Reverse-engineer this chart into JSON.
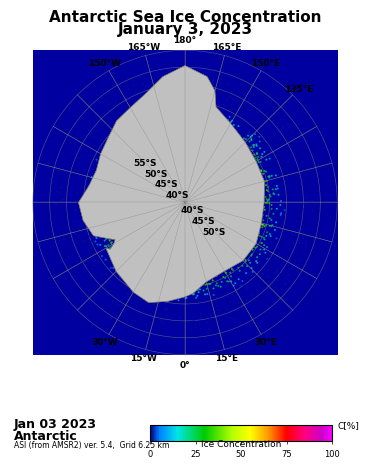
{
  "title_line1": "Antarctic Sea Ice Concentration",
  "title_line2": "January 3, 2023",
  "bottom_line1": "Jan 03 2023",
  "bottom_line2": "Antarctic",
  "bottom_line3": "ASI (from AMSR2) ver. 5.4,  Grid 6.25 km",
  "colorbar_label": "C[%]",
  "colorbar_xlabel": "Ice Concentration",
  "colorbar_ticks": [
    0,
    25,
    50,
    75,
    100
  ],
  "bg_color": "#000080",
  "map_bg": "#0000CD",
  "antarctica_color": "#C0C0C0",
  "grid_color": "#808080",
  "title_fontsize": 11,
  "label_fontsize": 7,
  "tick_fontsize": 6.5,
  "lon_labels_top": [
    "30°W",
    "15°W",
    "0°",
    "15°E",
    "30°E"
  ],
  "lon_labels_right": [
    "40°S",
    "45°S",
    "50°S"
  ],
  "lon_labels_left": [
    "40°S",
    "45°S",
    "50°S",
    "55°S"
  ],
  "lon_labels_bottom": [
    "150°W",
    "165°W",
    "180°",
    "165°E",
    "150°E",
    "135°E"
  ]
}
